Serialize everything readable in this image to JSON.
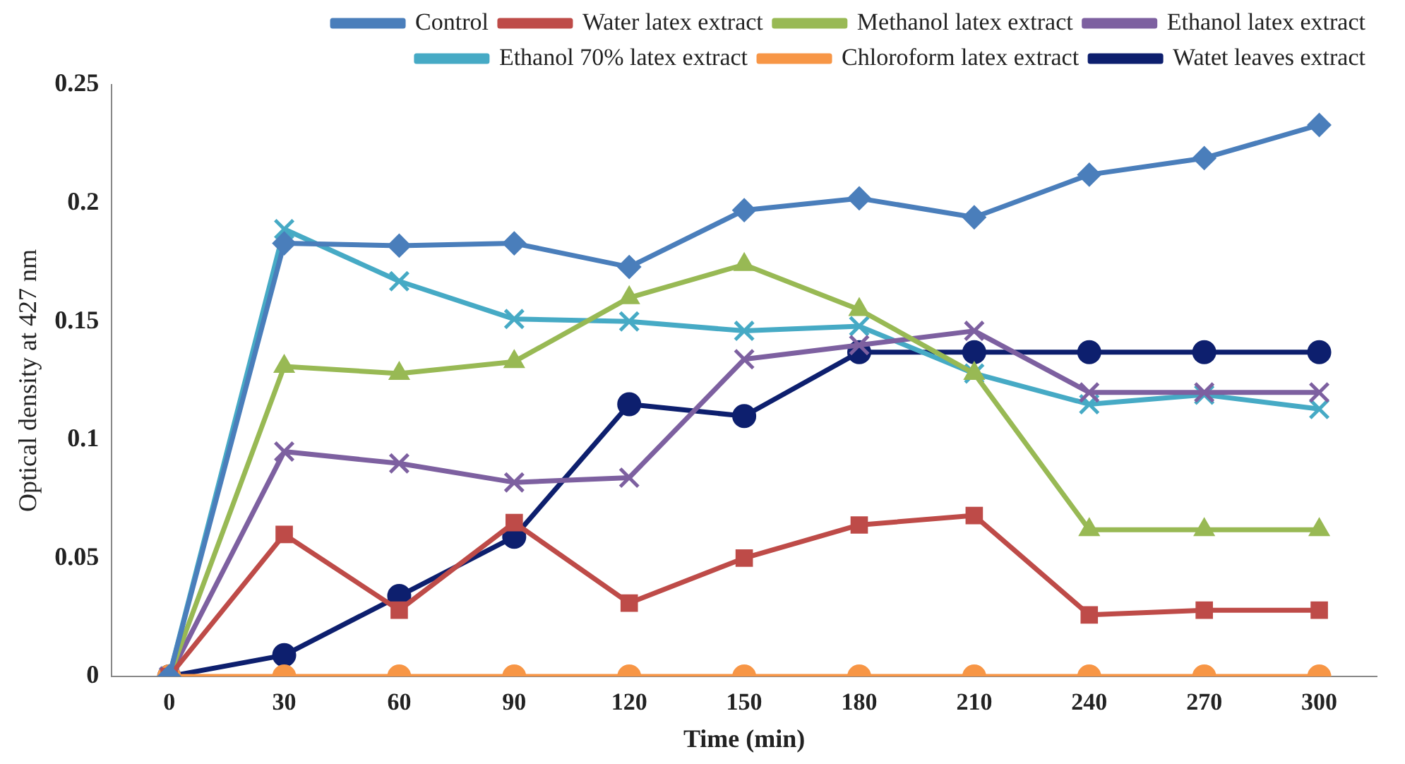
{
  "chart_data": {
    "type": "line",
    "xlabel": "Time (min)",
    "ylabel": "Optical density at 427 nm",
    "categories": [
      "0",
      "30",
      "60",
      "90",
      "120",
      "150",
      "180",
      "210",
      "240",
      "270",
      "300"
    ],
    "ylim": [
      0,
      0.25
    ],
    "yticks": [
      0,
      0.05,
      0.1,
      0.15,
      0.2,
      0.25
    ],
    "legend": "top",
    "line_style": "solid",
    "series": [
      {
        "name": "Control",
        "color": "#4a7ebb",
        "marker": "diamond",
        "values": [
          0,
          0.183,
          0.182,
          0.183,
          0.173,
          0.197,
          0.202,
          0.194,
          0.212,
          0.219,
          0.233
        ]
      },
      {
        "name": "Water latex extract",
        "color": "#be4b48",
        "marker": "square",
        "values": [
          0,
          0.06,
          0.028,
          0.065,
          0.031,
          0.05,
          0.064,
          0.068,
          0.026,
          0.028,
          0.028
        ]
      },
      {
        "name": "Methanol latex extract",
        "color": "#98b954",
        "marker": "triangle",
        "values": [
          0,
          0.131,
          0.128,
          0.133,
          0.16,
          0.174,
          0.155,
          0.128,
          0.062,
          0.062,
          0.062
        ]
      },
      {
        "name": "Ethanol latex extract",
        "color": "#7d60a0",
        "marker": "cross",
        "values": [
          0,
          0.095,
          0.09,
          0.082,
          0.084,
          0.134,
          0.14,
          0.146,
          0.12,
          0.12,
          0.12
        ]
      },
      {
        "name": "Ethanol 70% latex extract",
        "color": "#46aac5",
        "marker": "cross",
        "values": [
          0,
          0.189,
          0.167,
          0.151,
          0.15,
          0.146,
          0.148,
          0.128,
          0.115,
          0.119,
          0.113
        ]
      },
      {
        "name": "Chloroform latex extract",
        "color": "#f79646",
        "marker": "circle",
        "values": [
          0,
          0,
          0,
          0,
          0,
          0,
          0,
          0,
          0,
          0,
          0
        ]
      },
      {
        "name": "Watet leaves extract",
        "color": "#0d1f6e",
        "marker": "circle",
        "values": [
          0,
          0.009,
          0.034,
          0.059,
          0.115,
          0.11,
          0.137,
          0.137,
          0.137,
          0.137,
          0.137
        ]
      }
    ]
  }
}
